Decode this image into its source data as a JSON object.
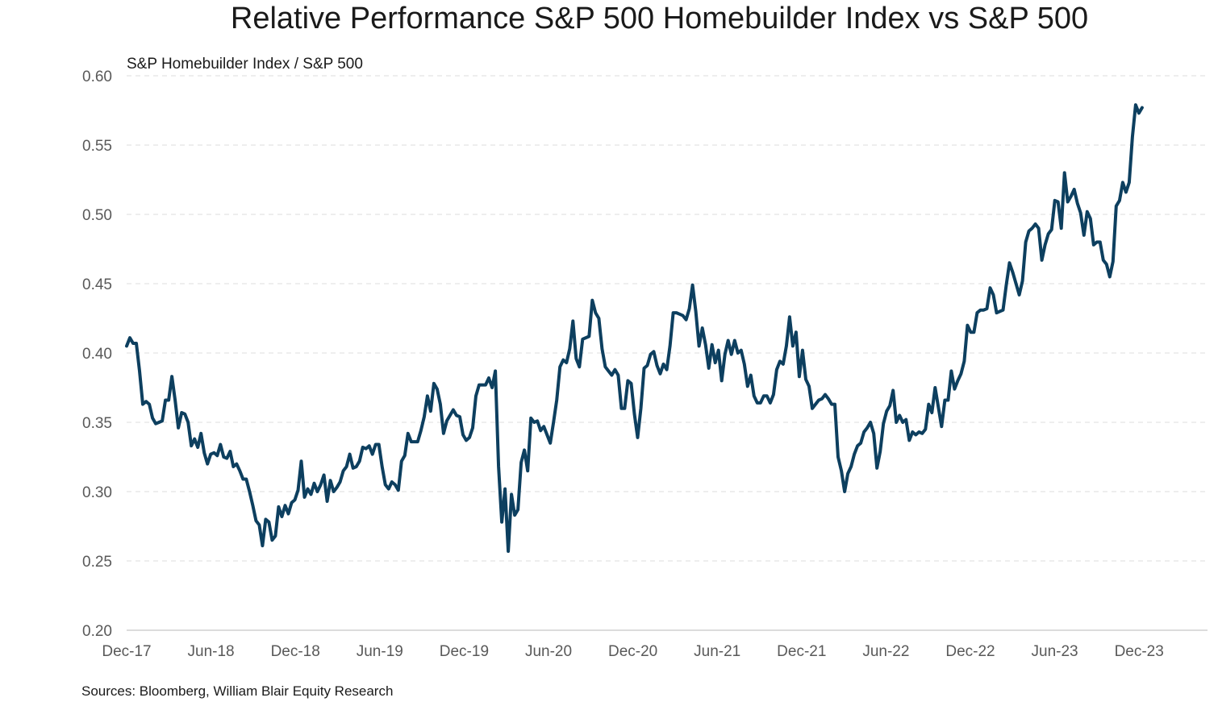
{
  "chart_data": {
    "type": "line",
    "title": "Relative Performance S&P 500 Homebuilder Index vs S&P 500",
    "subtitle": "S&P Homebuilder Index / S&P 500",
    "source": "Sources: Bloomberg, William Blair Equity Research",
    "xlabel": "",
    "ylabel": "",
    "ylim": [
      0.2,
      0.6
    ],
    "y_ticks": [
      "0.20",
      "0.25",
      "0.30",
      "0.35",
      "0.40",
      "0.45",
      "0.50",
      "0.55",
      "0.60"
    ],
    "x_tick_labels": [
      "Dec-17",
      "Jun-18",
      "Dec-18",
      "Jun-19",
      "Dec-19",
      "Jun-20",
      "Dec-20",
      "Jun-21",
      "Dec-21",
      "Jun-22",
      "Dec-22",
      "Jun-23",
      "Dec-23"
    ],
    "grid": "horizontal dashed",
    "line_color": "#0d3f5f",
    "series": [
      {
        "x": [
          "2017-12-01",
          "2017-12-08",
          "2017-12-15",
          "2017-12-22",
          "2017-12-29",
          "2018-01-05",
          "2018-01-12",
          "2018-01-19",
          "2018-01-26",
          "2018-02-02",
          "2018-02-09",
          "2018-02-16",
          "2018-02-23",
          "2018-03-02",
          "2018-03-09",
          "2018-03-16",
          "2018-03-23",
          "2018-03-30",
          "2018-04-06",
          "2018-04-13",
          "2018-04-20",
          "2018-04-27",
          "2018-05-04",
          "2018-05-11",
          "2018-05-18",
          "2018-05-25",
          "2018-06-01",
          "2018-06-08",
          "2018-06-15",
          "2018-06-22",
          "2018-06-29",
          "2018-07-06",
          "2018-07-13",
          "2018-07-20",
          "2018-07-27",
          "2018-08-03",
          "2018-08-10",
          "2018-08-17",
          "2018-08-24",
          "2018-08-31",
          "2018-09-07",
          "2018-09-14",
          "2018-09-21",
          "2018-09-28",
          "2018-10-05",
          "2018-10-12",
          "2018-10-19",
          "2018-10-26",
          "2018-11-02",
          "2018-11-09",
          "2018-11-16",
          "2018-11-23",
          "2018-11-30",
          "2018-12-07",
          "2018-12-14",
          "2018-12-21",
          "2018-12-28",
          "2019-01-04",
          "2019-01-11",
          "2019-01-18",
          "2019-01-25",
          "2019-02-01",
          "2019-02-08",
          "2019-02-15",
          "2019-02-22",
          "2019-03-01",
          "2019-03-08",
          "2019-03-15",
          "2019-03-22",
          "2019-03-29",
          "2019-04-05",
          "2019-04-12",
          "2019-04-19",
          "2019-04-26",
          "2019-05-03",
          "2019-05-10",
          "2019-05-17",
          "2019-05-24",
          "2019-05-31",
          "2019-06-07",
          "2019-06-14",
          "2019-06-21",
          "2019-06-28",
          "2019-07-05",
          "2019-07-12",
          "2019-07-19",
          "2019-07-26",
          "2019-08-02",
          "2019-08-09",
          "2019-08-16",
          "2019-08-23",
          "2019-08-30",
          "2019-09-06",
          "2019-09-13",
          "2019-09-20",
          "2019-09-27",
          "2019-10-04",
          "2019-10-11",
          "2019-10-18",
          "2019-10-25",
          "2019-11-01",
          "2019-11-08",
          "2019-11-15",
          "2019-11-22",
          "2019-11-29",
          "2019-12-06",
          "2019-12-13",
          "2019-12-20",
          "2019-12-27",
          "2020-01-03",
          "2020-01-10",
          "2020-01-17",
          "2020-01-24",
          "2020-01-31",
          "2020-02-07",
          "2020-02-14",
          "2020-02-21",
          "2020-02-28",
          "2020-03-06",
          "2020-03-13",
          "2020-03-20",
          "2020-03-27",
          "2020-04-03",
          "2020-04-10",
          "2020-04-17",
          "2020-04-24",
          "2020-05-01",
          "2020-05-08",
          "2020-05-15",
          "2020-05-22",
          "2020-05-29",
          "2020-06-05",
          "2020-06-12",
          "2020-06-19",
          "2020-06-26",
          "2020-07-03",
          "2020-07-10",
          "2020-07-17",
          "2020-07-24",
          "2020-07-31",
          "2020-08-07",
          "2020-08-14",
          "2020-08-21",
          "2020-08-28",
          "2020-09-04",
          "2020-09-11",
          "2020-09-18",
          "2020-09-25",
          "2020-10-02",
          "2020-10-09",
          "2020-10-16",
          "2020-10-23",
          "2020-10-30",
          "2020-11-06",
          "2020-11-13",
          "2020-11-20",
          "2020-11-27",
          "2020-12-04",
          "2020-12-11",
          "2020-12-18",
          "2020-12-25",
          "2021-01-01",
          "2021-01-08",
          "2021-01-15",
          "2021-01-22",
          "2021-01-29",
          "2021-02-05",
          "2021-02-12",
          "2021-02-19",
          "2021-02-26",
          "2021-03-05",
          "2021-03-12",
          "2021-03-19",
          "2021-03-26",
          "2021-04-02",
          "2021-04-09",
          "2021-04-16",
          "2021-04-23",
          "2021-04-30",
          "2021-05-07",
          "2021-05-14",
          "2021-05-21",
          "2021-05-28",
          "2021-06-04",
          "2021-06-11",
          "2021-06-18",
          "2021-06-25",
          "2021-07-02",
          "2021-07-09",
          "2021-07-16",
          "2021-07-23",
          "2021-07-30",
          "2021-08-06",
          "2021-08-13",
          "2021-08-20",
          "2021-08-27",
          "2021-09-03",
          "2021-09-10",
          "2021-09-17",
          "2021-09-24",
          "2021-10-01",
          "2021-10-08",
          "2021-10-15",
          "2021-10-22",
          "2021-10-29",
          "2021-11-05",
          "2021-11-12",
          "2021-11-19",
          "2021-11-26",
          "2021-12-03",
          "2021-12-10",
          "2021-12-17",
          "2021-12-24",
          "2021-12-31",
          "2022-01-07",
          "2022-01-14",
          "2022-01-21",
          "2022-01-28",
          "2022-02-04",
          "2022-02-11",
          "2022-02-18",
          "2022-02-25",
          "2022-03-04",
          "2022-03-11",
          "2022-03-18",
          "2022-03-25",
          "2022-04-01",
          "2022-04-08",
          "2022-04-15",
          "2022-04-22",
          "2022-04-29",
          "2022-05-06",
          "2022-05-13",
          "2022-05-20",
          "2022-05-27",
          "2022-06-03",
          "2022-06-10",
          "2022-06-17",
          "2022-06-24",
          "2022-07-01",
          "2022-07-08",
          "2022-07-15",
          "2022-07-22",
          "2022-07-29",
          "2022-08-05",
          "2022-08-12",
          "2022-08-19",
          "2022-08-26",
          "2022-09-02",
          "2022-09-09",
          "2022-09-16",
          "2022-09-23",
          "2022-09-30",
          "2022-10-07",
          "2022-10-14",
          "2022-10-21",
          "2022-10-28",
          "2022-11-04",
          "2022-11-11",
          "2022-11-18",
          "2022-11-25",
          "2022-12-02",
          "2022-12-09",
          "2022-12-16",
          "2022-12-23",
          "2022-12-30",
          "2023-01-06",
          "2023-01-13",
          "2023-01-20",
          "2023-01-27",
          "2023-02-03",
          "2023-02-10",
          "2023-02-17",
          "2023-02-24",
          "2023-03-03",
          "2023-03-10",
          "2023-03-17",
          "2023-03-24",
          "2023-03-31",
          "2023-04-07",
          "2023-04-14",
          "2023-04-21",
          "2023-04-28",
          "2023-05-05",
          "2023-05-12",
          "2023-05-19",
          "2023-05-26",
          "2023-06-02",
          "2023-06-09",
          "2023-06-16",
          "2023-06-23",
          "2023-06-30",
          "2023-07-07",
          "2023-07-14",
          "2023-07-21",
          "2023-07-28",
          "2023-08-04",
          "2023-08-11",
          "2023-08-18",
          "2023-08-25",
          "2023-09-01",
          "2023-09-08",
          "2023-09-15",
          "2023-09-22",
          "2023-09-29",
          "2023-10-06",
          "2023-10-13",
          "2023-10-20",
          "2023-10-27",
          "2023-11-03",
          "2023-11-10",
          "2023-11-17",
          "2023-11-24",
          "2023-12-01",
          "2023-12-08"
        ],
        "y": [
          0.405,
          0.411,
          0.407,
          0.407,
          0.387,
          0.363,
          0.365,
          0.363,
          0.353,
          0.349,
          0.35,
          0.351,
          0.366,
          0.366,
          0.383,
          0.366,
          0.346,
          0.357,
          0.356,
          0.35,
          0.333,
          0.338,
          0.332,
          0.342,
          0.328,
          0.32,
          0.327,
          0.328,
          0.326,
          0.334,
          0.325,
          0.324,
          0.329,
          0.318,
          0.32,
          0.315,
          0.309,
          0.309,
          0.3,
          0.29,
          0.279,
          0.276,
          0.261,
          0.28,
          0.278,
          0.265,
          0.268,
          0.289,
          0.282,
          0.29,
          0.284,
          0.292,
          0.294,
          0.301,
          0.322,
          0.296,
          0.302,
          0.298,
          0.306,
          0.3,
          0.305,
          0.312,
          0.293,
          0.308,
          0.3,
          0.303,
          0.307,
          0.315,
          0.318,
          0.327,
          0.317,
          0.318,
          0.322,
          0.332,
          0.331,
          0.333,
          0.327,
          0.334,
          0.334,
          0.318,
          0.305,
          0.302,
          0.307,
          0.305,
          0.301,
          0.322,
          0.326,
          0.342,
          0.336,
          0.336,
          0.336,
          0.344,
          0.354,
          0.369,
          0.358,
          0.378,
          0.374,
          0.363,
          0.342,
          0.351,
          0.355,
          0.359,
          0.355,
          0.354,
          0.341,
          0.337,
          0.339,
          0.346,
          0.369,
          0.377,
          0.377,
          0.377,
          0.382,
          0.375,
          0.387,
          0.318,
          0.278,
          0.302,
          0.257,
          0.298,
          0.283,
          0.287,
          0.321,
          0.33,
          0.315,
          0.353,
          0.35,
          0.351,
          0.344,
          0.347,
          0.341,
          0.335,
          0.35,
          0.366,
          0.39,
          0.395,
          0.393,
          0.403,
          0.423,
          0.396,
          0.39,
          0.41,
          0.411,
          0.412,
          0.438,
          0.429,
          0.425,
          0.403,
          0.39,
          0.387,
          0.384,
          0.388,
          0.384,
          0.36,
          0.36,
          0.38,
          0.378,
          0.356,
          0.339,
          0.36,
          0.389,
          0.391,
          0.399,
          0.401,
          0.391,
          0.385,
          0.392,
          0.388,
          0.405,
          0.429,
          0.429,
          0.428,
          0.427,
          0.424,
          0.432,
          0.449,
          0.43,
          0.405,
          0.418,
          0.406,
          0.389,
          0.406,
          0.393,
          0.402,
          0.38,
          0.399,
          0.409,
          0.399,
          0.409,
          0.4,
          0.402,
          0.392,
          0.376,
          0.384,
          0.369,
          0.364,
          0.364,
          0.369,
          0.369,
          0.364,
          0.37,
          0.388,
          0.394,
          0.392,
          0.405,
          0.426,
          0.405,
          0.415,
          0.383,
          0.402,
          0.381,
          0.376,
          0.36,
          0.363,
          0.366,
          0.367,
          0.37,
          0.367,
          0.363,
          0.363,
          0.325,
          0.315,
          0.3,
          0.313,
          0.318,
          0.327,
          0.333,
          0.335,
          0.343,
          0.346,
          0.35,
          0.342,
          0.317,
          0.329,
          0.349,
          0.358,
          0.362,
          0.373,
          0.35,
          0.355,
          0.35,
          0.352,
          0.337,
          0.343,
          0.341,
          0.343,
          0.342,
          0.345,
          0.363,
          0.357,
          0.375,
          0.361,
          0.347,
          0.366,
          0.366,
          0.387,
          0.374,
          0.38,
          0.385,
          0.394,
          0.42,
          0.415,
          0.415,
          0.429,
          0.431,
          0.431,
          0.432,
          0.447,
          0.442,
          0.429,
          0.43,
          0.431,
          0.449,
          0.465,
          0.458,
          0.45,
          0.442,
          0.452,
          0.48,
          0.488,
          0.49,
          0.493,
          0.49,
          0.467,
          0.478,
          0.486,
          0.489,
          0.51,
          0.509,
          0.49,
          0.53,
          0.509,
          0.513,
          0.518,
          0.508,
          0.501,
          0.485,
          0.502,
          0.497,
          0.478,
          0.48,
          0.48,
          0.467,
          0.464,
          0.455,
          0.466,
          0.506,
          0.51,
          0.523,
          0.516,
          0.523,
          0.556,
          0.579,
          0.573,
          0.577
        ]
      }
    ]
  }
}
